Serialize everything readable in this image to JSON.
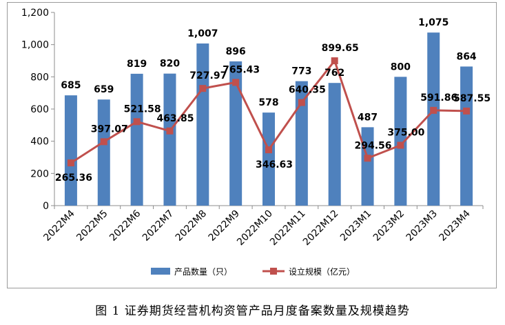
{
  "caption": "图 1   证券期货经营机构资管产品月度备案数量及规模趋势",
  "chart_data": {
    "type": "bar",
    "categories": [
      "2022M4",
      "2022M5",
      "2022M6",
      "2022M7",
      "2022M8",
      "2022M9",
      "2022M10",
      "2022M11",
      "2022M12",
      "2023M1",
      "2023M2",
      "2023M3",
      "2023M4"
    ],
    "series": [
      {
        "name": "产品数量（只）",
        "type": "bar",
        "color": "#4f81bd",
        "values": [
          685,
          659,
          819,
          820,
          1007,
          896,
          578,
          773,
          762,
          487,
          800,
          1075,
          864
        ],
        "labels": [
          "685",
          "659",
          "819",
          "820",
          "1,007",
          "896",
          "578",
          "773",
          "762",
          "487",
          "800",
          "1,075",
          "864"
        ]
      },
      {
        "name": "设立规模（亿元）",
        "type": "line",
        "color": "#c0504d",
        "values": [
          265.36,
          397.07,
          521.58,
          463.85,
          727.97,
          765.43,
          346.63,
          640.35,
          899.65,
          294.56,
          375.0,
          591.86,
          587.55
        ],
        "labels": [
          "265.36",
          "397.07",
          "521.58",
          "463.85",
          "727.97",
          "765.43",
          "346.63",
          "640.35",
          "899.65",
          "294.56",
          "375.00",
          "591.86",
          "587.55"
        ]
      }
    ],
    "yticks": [
      "0",
      "200",
      "400",
      "600",
      "800",
      "1,000",
      "1,200"
    ],
    "ylim": [
      0,
      1200
    ],
    "grid": false,
    "legend": "bottom"
  }
}
